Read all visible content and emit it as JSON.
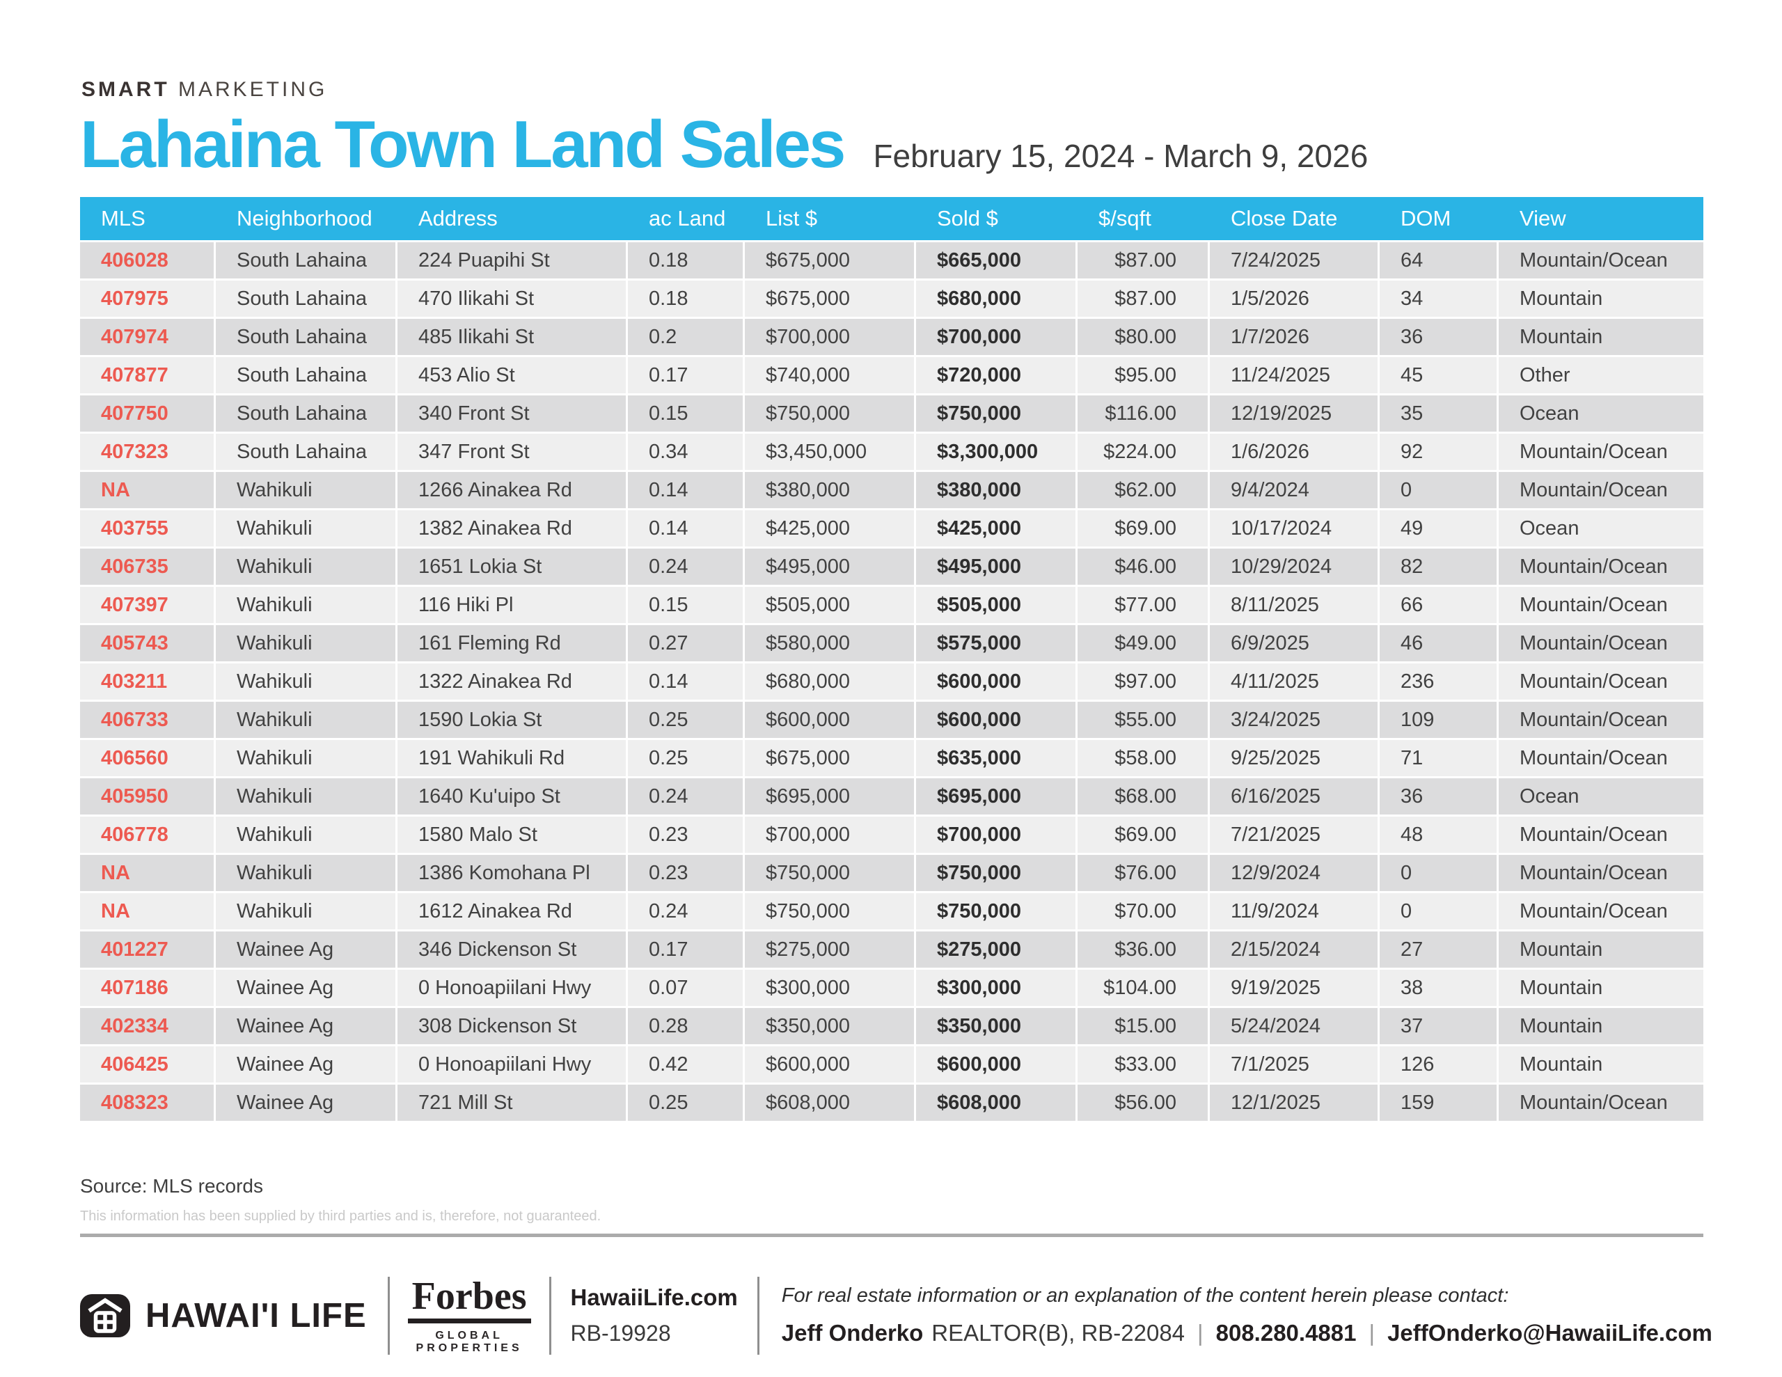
{
  "brand_tagline": {
    "bold": "SMART",
    "regular": "MARKETING"
  },
  "header": {
    "title": "Lahaina Town Land Sales",
    "date_range": "February 15, 2024 - March 9, 2026"
  },
  "colors": {
    "accent_cyan": "#2ab4e5",
    "mls_red": "#ed5a51",
    "row_dark": "#dcdcdd",
    "row_light": "#efefef"
  },
  "table": {
    "columns": [
      "MLS",
      "Neighborhood",
      "Address",
      "ac Land",
      "List $",
      "Sold $",
      "$/sqft",
      "Close Date",
      "DOM",
      "View"
    ],
    "rows": [
      [
        "406028",
        "South Lahaina",
        "224 Puapihi St",
        "0.18",
        "$675,000",
        "$665,000",
        "$87.00",
        "7/24/2025",
        "64",
        "Mountain/Ocean"
      ],
      [
        "407975",
        "South Lahaina",
        "470 Ilikahi St",
        "0.18",
        "$675,000",
        "$680,000",
        "$87.00",
        "1/5/2026",
        "34",
        "Mountain"
      ],
      [
        "407974",
        "South Lahaina",
        "485 Ilikahi St",
        "0.2",
        "$700,000",
        "$700,000",
        "$80.00",
        "1/7/2026",
        "36",
        "Mountain"
      ],
      [
        "407877",
        "South Lahaina",
        "453 Alio St",
        "0.17",
        "$740,000",
        "$720,000",
        "$95.00",
        "11/24/2025",
        "45",
        "Other"
      ],
      [
        "407750",
        "South Lahaina",
        "340 Front St",
        "0.15",
        "$750,000",
        "$750,000",
        "$116.00",
        "12/19/2025",
        "35",
        "Ocean"
      ],
      [
        "407323",
        "South Lahaina",
        "347 Front St",
        "0.34",
        "$3,450,000",
        "$3,300,000",
        "$224.00",
        "1/6/2026",
        "92",
        "Mountain/Ocean"
      ],
      [
        "NA",
        "Wahikuli",
        "1266 Ainakea Rd",
        "0.14",
        "$380,000",
        "$380,000",
        "$62.00",
        "9/4/2024",
        "0",
        "Mountain/Ocean"
      ],
      [
        "403755",
        "Wahikuli",
        "1382 Ainakea Rd",
        "0.14",
        "$425,000",
        "$425,000",
        "$69.00",
        "10/17/2024",
        "49",
        "Ocean"
      ],
      [
        "406735",
        "Wahikuli",
        "1651 Lokia St",
        "0.24",
        "$495,000",
        "$495,000",
        "$46.00",
        "10/29/2024",
        "82",
        "Mountain/Ocean"
      ],
      [
        "407397",
        "Wahikuli",
        "116 Hiki Pl",
        "0.15",
        "$505,000",
        "$505,000",
        "$77.00",
        "8/11/2025",
        "66",
        "Mountain/Ocean"
      ],
      [
        "405743",
        "Wahikuli",
        "161 Fleming Rd",
        "0.27",
        "$580,000",
        "$575,000",
        "$49.00",
        "6/9/2025",
        "46",
        "Mountain/Ocean"
      ],
      [
        "403211",
        "Wahikuli",
        "1322 Ainakea Rd",
        "0.14",
        "$680,000",
        "$600,000",
        "$97.00",
        "4/11/2025",
        "236",
        "Mountain/Ocean"
      ],
      [
        "406733",
        "Wahikuli",
        "1590 Lokia St",
        "0.25",
        "$600,000",
        "$600,000",
        "$55.00",
        "3/24/2025",
        "109",
        "Mountain/Ocean"
      ],
      [
        "406560",
        "Wahikuli",
        "191 Wahikuli Rd",
        "0.25",
        "$675,000",
        "$635,000",
        "$58.00",
        "9/25/2025",
        "71",
        "Mountain/Ocean"
      ],
      [
        "405950",
        "Wahikuli",
        "1640 Ku'uipo St",
        "0.24",
        "$695,000",
        "$695,000",
        "$68.00",
        "6/16/2025",
        "36",
        "Ocean"
      ],
      [
        "406778",
        "Wahikuli",
        "1580 Malo St",
        "0.23",
        "$700,000",
        "$700,000",
        "$69.00",
        "7/21/2025",
        "48",
        "Mountain/Ocean"
      ],
      [
        "NA",
        "Wahikuli",
        "1386 Komohana Pl",
        "0.23",
        "$750,000",
        "$750,000",
        "$76.00",
        "12/9/2024",
        "0",
        "Mountain/Ocean"
      ],
      [
        "NA",
        "Wahikuli",
        "1612 Ainakea Rd",
        "0.24",
        "$750,000",
        "$750,000",
        "$70.00",
        "11/9/2024",
        "0",
        "Mountain/Ocean"
      ],
      [
        "401227",
        "Wainee Ag",
        "346 Dickenson St",
        "0.17",
        "$275,000",
        "$275,000",
        "$36.00",
        "2/15/2024",
        "27",
        "Mountain"
      ],
      [
        "407186",
        "Wainee Ag",
        "0 Honoapiilani Hwy",
        "0.07",
        "$300,000",
        "$300,000",
        "$104.00",
        "9/19/2025",
        "38",
        "Mountain"
      ],
      [
        "402334",
        "Wainee Ag",
        "308 Dickenson St",
        "0.28",
        "$350,000",
        "$350,000",
        "$15.00",
        "5/24/2024",
        "37",
        "Mountain"
      ],
      [
        "406425",
        "Wainee Ag",
        "0 Honoapiilani Hwy",
        "0.42",
        "$600,000",
        "$600,000",
        "$33.00",
        "7/1/2025",
        "126",
        "Mountain"
      ],
      [
        "408323",
        "Wainee Ag",
        "721 Mill St",
        "0.25",
        "$608,000",
        "$608,000",
        "$56.00",
        "12/1/2025",
        "159",
        "Mountain/Ocean"
      ]
    ]
  },
  "source_note": "Source: MLS records",
  "disclaimer": "This information has been supplied by third parties and is, therefore, not guaranteed.",
  "footer": {
    "brand_name": "HAWAI'I LIFE",
    "forbes": {
      "word": "Forbes",
      "sub": "GLOBAL PROPERTIES"
    },
    "website": "HawaiiLife.com",
    "license": "RB-19928",
    "contact_intro": "For real estate information or an explanation of the content herein please contact:",
    "agent_name": "Jeff Onderko",
    "agent_title": "REALTOR(B), RB-22084",
    "agent_phone": "808.280.4881",
    "agent_email": "JeffOnderko@HawaiiLife.com"
  }
}
